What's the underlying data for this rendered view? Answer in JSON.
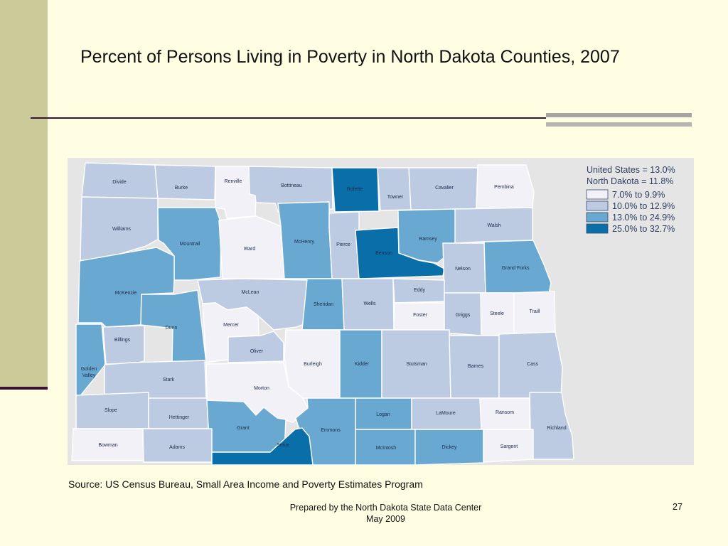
{
  "slide": {
    "title": "Percent of Persons Living in Poverty in North Dakota Counties, 2007",
    "source": "Source: US Census Bureau, Small Area Income and Poverty Estimates Program",
    "footer_line1": "Prepared by the North Dakota State Data Center",
    "footer_line2": "May 2009",
    "page_number": "27"
  },
  "legend": {
    "us_line": "United States  = 13.0%",
    "nd_line": "North Dakota  = 11.8%",
    "classes": [
      {
        "label": "7.0% to 9.9%",
        "color": "#f3f1f8"
      },
      {
        "label": "10.0% to 12.9%",
        "color": "#bccae2"
      },
      {
        "label": "13.0% to 24.9%",
        "color": "#69a8d0"
      },
      {
        "label": "25.0% to 32.7%",
        "color": "#0a6ea9"
      }
    ]
  },
  "counties": [
    {
      "name": "Divide",
      "class": 1
    },
    {
      "name": "Burke",
      "class": 1
    },
    {
      "name": "Renville",
      "class": 0
    },
    {
      "name": "Bottineau",
      "class": 1
    },
    {
      "name": "Rolette",
      "class": 3
    },
    {
      "name": "Towner",
      "class": 1
    },
    {
      "name": "Cavalier",
      "class": 1
    },
    {
      "name": "Pembina",
      "class": 0
    },
    {
      "name": "Williams",
      "class": 1
    },
    {
      "name": "Mountrail",
      "class": 2
    },
    {
      "name": "Ward",
      "class": 0
    },
    {
      "name": "McHenry",
      "class": 2
    },
    {
      "name": "Pierce",
      "class": 1
    },
    {
      "name": "Benson",
      "class": 3
    },
    {
      "name": "Ramsey",
      "class": 2
    },
    {
      "name": "Walsh",
      "class": 1
    },
    {
      "name": "Nelson",
      "class": 1
    },
    {
      "name": "Grand Forks",
      "class": 2
    },
    {
      "name": "McKenzie",
      "class": 2
    },
    {
      "name": "McLean",
      "class": 1
    },
    {
      "name": "Sheridan",
      "class": 2
    },
    {
      "name": "Wells",
      "class": 1
    },
    {
      "name": "Eddy",
      "class": 1
    },
    {
      "name": "Foster",
      "class": 0
    },
    {
      "name": "Griggs",
      "class": 1
    },
    {
      "name": "Steele",
      "class": 0
    },
    {
      "name": "Traill",
      "class": 0
    },
    {
      "name": "Mercer",
      "class": 0
    },
    {
      "name": "Dunn",
      "class": 2
    },
    {
      "name": "Oliver",
      "class": 1
    },
    {
      "name": "Billings",
      "class": 1
    },
    {
      "name": "Golden Valley",
      "class": 2
    },
    {
      "name": "Stark",
      "class": 1
    },
    {
      "name": "Burleigh",
      "class": 0
    },
    {
      "name": "Kidder",
      "class": 2
    },
    {
      "name": "Stutsman",
      "class": 1
    },
    {
      "name": "Barnes",
      "class": 1
    },
    {
      "name": "Cass",
      "class": 1
    },
    {
      "name": "Morton",
      "class": 0
    },
    {
      "name": "Slope",
      "class": 1
    },
    {
      "name": "Hettinger",
      "class": 1
    },
    {
      "name": "Grant",
      "class": 2
    },
    {
      "name": "Emmons",
      "class": 2
    },
    {
      "name": "Logan",
      "class": 2
    },
    {
      "name": "LaMoure",
      "class": 1
    },
    {
      "name": "Ransom",
      "class": 0
    },
    {
      "name": "Richland",
      "class": 1
    },
    {
      "name": "Bowman",
      "class": 0
    },
    {
      "name": "Adams",
      "class": 1
    },
    {
      "name": "Sioux",
      "class": 3
    },
    {
      "name": "McIntosh",
      "class": 2
    },
    {
      "name": "Dickey",
      "class": 2
    },
    {
      "name": "Sargent",
      "class": 0
    }
  ]
}
